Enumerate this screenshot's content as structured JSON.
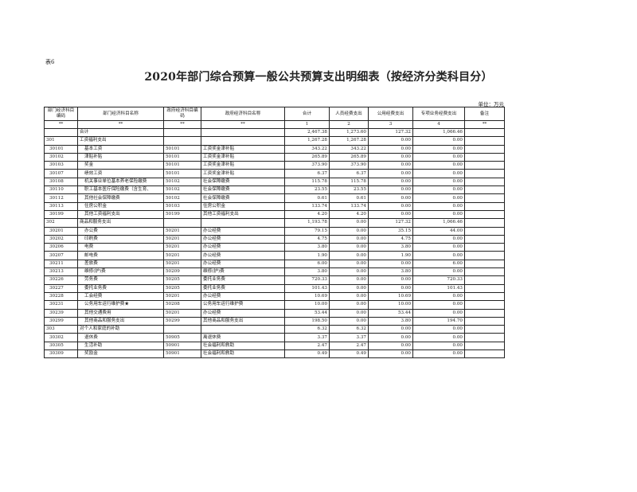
{
  "table_tag": "表6",
  "title": "2020年部门综合预算一般公共预算支出明细表（按经济分类科目分）",
  "unit": "单位：万元",
  "headers": [
    "部门经济科目编码",
    "部门经济科目名称",
    "政府经济科目编码",
    "政府经济科目名称",
    "合计",
    "人员经费支出",
    "公用经费支出",
    "专项业务经费支出",
    "备注"
  ],
  "index_row": [
    "**",
    "**",
    "**",
    "**",
    "1",
    "2",
    "3",
    "4",
    "**"
  ],
  "rows": [
    {
      "level": 0,
      "dept_code": "",
      "dept_name": "合计",
      "gov_code": "",
      "gov_name": "",
      "total": "2,467.38",
      "personnel": "1,273.60",
      "public": "127.32",
      "special": "1,066.46",
      "note": ""
    },
    {
      "level": 1,
      "dept_code": "301",
      "dept_name": "工资福利支出",
      "gov_code": "",
      "gov_name": "",
      "total": "1,267.28",
      "personnel": "1,267.28",
      "public": "0.00",
      "special": "0.00",
      "note": ""
    },
    {
      "level": 2,
      "dept_code": "30101",
      "dept_name": "基本工资",
      "gov_code": "50101",
      "gov_name": "工资奖金津补贴",
      "total": "343.22",
      "personnel": "343.22",
      "public": "0.00",
      "special": "0.00",
      "note": ""
    },
    {
      "level": 2,
      "dept_code": "30102",
      "dept_name": "津贴补贴",
      "gov_code": "50101",
      "gov_name": "工资奖金津补贴",
      "total": "265.89",
      "personnel": "265.89",
      "public": "0.00",
      "special": "0.00",
      "note": ""
    },
    {
      "level": 2,
      "dept_code": "30103",
      "dept_name": "奖金",
      "gov_code": "50101",
      "gov_name": "工资奖金津补贴",
      "total": "373.90",
      "personnel": "373.90",
      "public": "0.00",
      "special": "0.00",
      "note": ""
    },
    {
      "level": 2,
      "dept_code": "30107",
      "dept_name": "绩效工资",
      "gov_code": "50101",
      "gov_name": "工资奖金津补贴",
      "total": "6.37",
      "personnel": "6.37",
      "public": "0.00",
      "special": "0.00",
      "note": ""
    },
    {
      "level": 2,
      "dept_code": "30108",
      "dept_name": "机关事业单位基本养老保险缴费",
      "gov_code": "50102",
      "gov_name": "社会保障缴费",
      "total": "115.78",
      "personnel": "115.78",
      "public": "0.00",
      "special": "0.00",
      "note": ""
    },
    {
      "level": 2,
      "dept_code": "30110",
      "dept_name": "职工基本医疗保险缴费（含生育、",
      "gov_code": "50102",
      "gov_name": "社会保障缴费",
      "total": "23.55",
      "personnel": "23.55",
      "public": "0.00",
      "special": "0.00",
      "note": ""
    },
    {
      "level": 2,
      "dept_code": "30112",
      "dept_name": "其他社会保障缴费",
      "gov_code": "50102",
      "gov_name": "社会保障缴费",
      "total": "0.61",
      "personnel": "0.61",
      "public": "0.00",
      "special": "0.00",
      "note": ""
    },
    {
      "level": 2,
      "dept_code": "30113",
      "dept_name": "住房公积金",
      "gov_code": "50103",
      "gov_name": "住房公积金",
      "total": "133.74",
      "personnel": "133.74",
      "public": "0.00",
      "special": "0.00",
      "note": ""
    },
    {
      "level": 2,
      "dept_code": "30199",
      "dept_name": "其他工资福利支出",
      "gov_code": "50199",
      "gov_name": "其他工资福利支出",
      "total": "4.20",
      "personnel": "4.20",
      "public": "0.00",
      "special": "0.00",
      "note": ""
    },
    {
      "level": 1,
      "dept_code": "302",
      "dept_name": "商品和服务支出",
      "gov_code": "",
      "gov_name": "",
      "total": "1,193.78",
      "personnel": "0.00",
      "public": "127.32",
      "special": "1,066.46",
      "note": ""
    },
    {
      "level": 2,
      "dept_code": "30201",
      "dept_name": "办公费",
      "gov_code": "50201",
      "gov_name": "办公经费",
      "total": "79.15",
      "personnel": "0.00",
      "public": "35.15",
      "special": "44.00",
      "note": ""
    },
    {
      "level": 2,
      "dept_code": "30202",
      "dept_name": "印刷费",
      "gov_code": "50201",
      "gov_name": "办公经费",
      "total": "4.75",
      "personnel": "0.00",
      "public": "4.75",
      "special": "0.00",
      "note": ""
    },
    {
      "level": 2,
      "dept_code": "30206",
      "dept_name": "电费",
      "gov_code": "50201",
      "gov_name": "办公经费",
      "total": "3.80",
      "personnel": "0.00",
      "public": "3.80",
      "special": "0.00",
      "note": ""
    },
    {
      "level": 2,
      "dept_code": "30207",
      "dept_name": "邮电费",
      "gov_code": "50201",
      "gov_name": "办公经费",
      "total": "1.90",
      "personnel": "0.00",
      "public": "1.90",
      "special": "0.00",
      "note": ""
    },
    {
      "level": 2,
      "dept_code": "30211",
      "dept_name": "差旅费",
      "gov_code": "50201",
      "gov_name": "办公经费",
      "total": "6.00",
      "personnel": "0.00",
      "public": "0.00",
      "special": "6.00",
      "note": ""
    },
    {
      "level": 2,
      "dept_code": "30213",
      "dept_name": "维修(护)费",
      "gov_code": "50209",
      "gov_name": "维修(护)费",
      "total": "3.80",
      "personnel": "0.00",
      "public": "3.80",
      "special": "0.00",
      "note": ""
    },
    {
      "level": 2,
      "dept_code": "30226",
      "dept_name": "劳务费",
      "gov_code": "50205",
      "gov_name": "委托业务费",
      "total": "720.33",
      "personnel": "0.00",
      "public": "0.00",
      "special": "720.33",
      "note": ""
    },
    {
      "level": 2,
      "dept_code": "30227",
      "dept_name": "委托业务费",
      "gov_code": "50205",
      "gov_name": "委托业务费",
      "total": "101.43",
      "personnel": "0.00",
      "public": "0.00",
      "special": "101.43",
      "note": ""
    },
    {
      "level": 2,
      "dept_code": "30228",
      "dept_name": "工会经费",
      "gov_code": "50201",
      "gov_name": "办公经费",
      "total": "10.69",
      "personnel": "0.00",
      "public": "10.69",
      "special": "0.00",
      "note": ""
    },
    {
      "level": 2,
      "dept_code": "30231",
      "dept_name": "公务用车运行维护费★",
      "gov_code": "50208",
      "gov_name": "公务用车运行维护费",
      "total": "10.00",
      "personnel": "0.00",
      "public": "10.00",
      "special": "0.00",
      "note": ""
    },
    {
      "level": 2,
      "dept_code": "30239",
      "dept_name": "其他交通费用",
      "gov_code": "50201",
      "gov_name": "办公经费",
      "total": "53.44",
      "personnel": "0.00",
      "public": "53.44",
      "special": "0.00",
      "note": ""
    },
    {
      "level": 2,
      "dept_code": "30299",
      "dept_name": "其他商品和服务支出",
      "gov_code": "50299",
      "gov_name": "其他商品和服务支出",
      "total": "198.50",
      "personnel": "0.00",
      "public": "3.80",
      "special": "194.70",
      "note": ""
    },
    {
      "level": 1,
      "dept_code": "303",
      "dept_name": "对个人和家庭的补助",
      "gov_code": "",
      "gov_name": "",
      "total": "6.32",
      "personnel": "6.32",
      "public": "0.00",
      "special": "0.00",
      "note": ""
    },
    {
      "level": 2,
      "dept_code": "30302",
      "dept_name": "退休费",
      "gov_code": "50905",
      "gov_name": "离退休费",
      "total": "3.37",
      "personnel": "3.37",
      "public": "0.00",
      "special": "0.00",
      "note": ""
    },
    {
      "level": 2,
      "dept_code": "30305",
      "dept_name": "生活补助",
      "gov_code": "50901",
      "gov_name": "社会福利和救助",
      "total": "2.47",
      "personnel": "2.47",
      "public": "0.00",
      "special": "0.00",
      "note": ""
    },
    {
      "level": 2,
      "dept_code": "30309",
      "dept_name": "奖励金",
      "gov_code": "50901",
      "gov_name": "社会福利和救助",
      "total": "0.49",
      "personnel": "0.49",
      "public": "0.00",
      "special": "0.00",
      "note": ""
    }
  ]
}
